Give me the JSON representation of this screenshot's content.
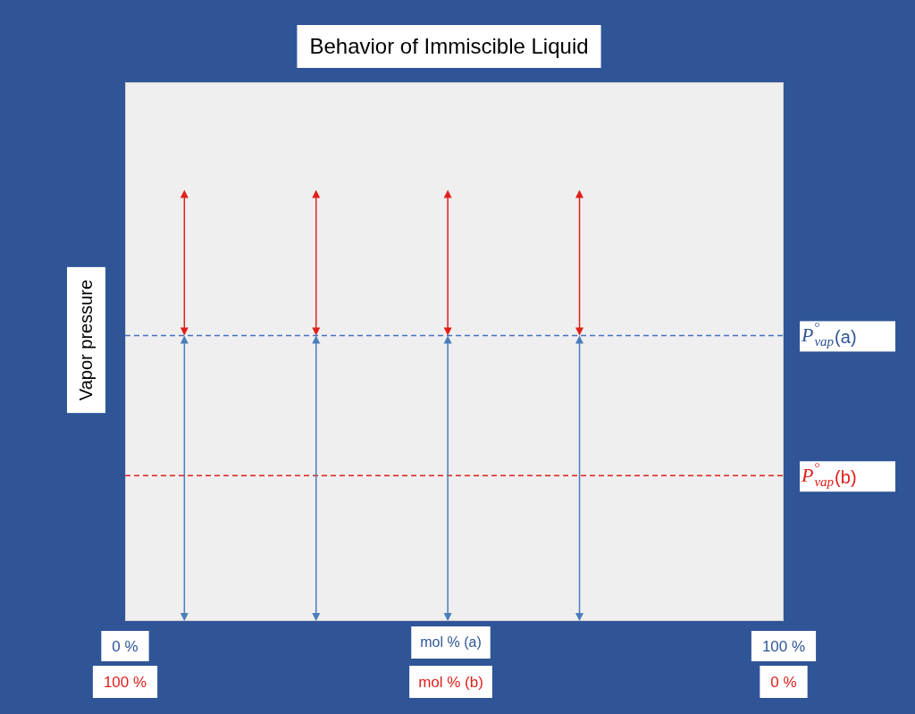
{
  "chart_data": {
    "type": "bar",
    "title": "Behavior of Immiscible Liquid",
    "y_label": "Vapor pressure",
    "x_label": "mol % (a)",
    "x2_label": "mol % (b)",
    "x": [
      9,
      29,
      49,
      69
    ],
    "xlim": [
      0,
      100
    ],
    "xticks": [
      {
        "value": 0,
        "label": "0 %"
      },
      {
        "value": 100,
        "label": "100 %"
      }
    ],
    "x2lim": [
      100,
      0
    ],
    "x2ticks": [
      {
        "value": 100,
        "label": "100 %"
      },
      {
        "value": 0,
        "label": "0 %"
      }
    ],
    "ylim": [
      0,
      100
    ],
    "tick_labels": "x",
    "grid": false,
    "stacked": true,
    "series": [
      {
        "color": "#4a7ebb",
        "marker": "arrow",
        "values": [
          53,
          53,
          53,
          53
        ]
      },
      {
        "color": "#e0201b",
        "marker": "arrow",
        "values": [
          27,
          27,
          27,
          27
        ]
      }
    ],
    "reference_lines": [
      {
        "value": 53,
        "color": "#4472c4",
        "line_style": "dashed",
        "label": {
          "symbol": "P",
          "sup": "°",
          "sub": "vap",
          "tail": "(a)"
        }
      },
      {
        "value": 27,
        "color": "#e0201b",
        "line_style": "dashed",
        "label": {
          "symbol": "P",
          "sup": "°",
          "sub": "vap",
          "tail": "(b)"
        }
      }
    ]
  }
}
